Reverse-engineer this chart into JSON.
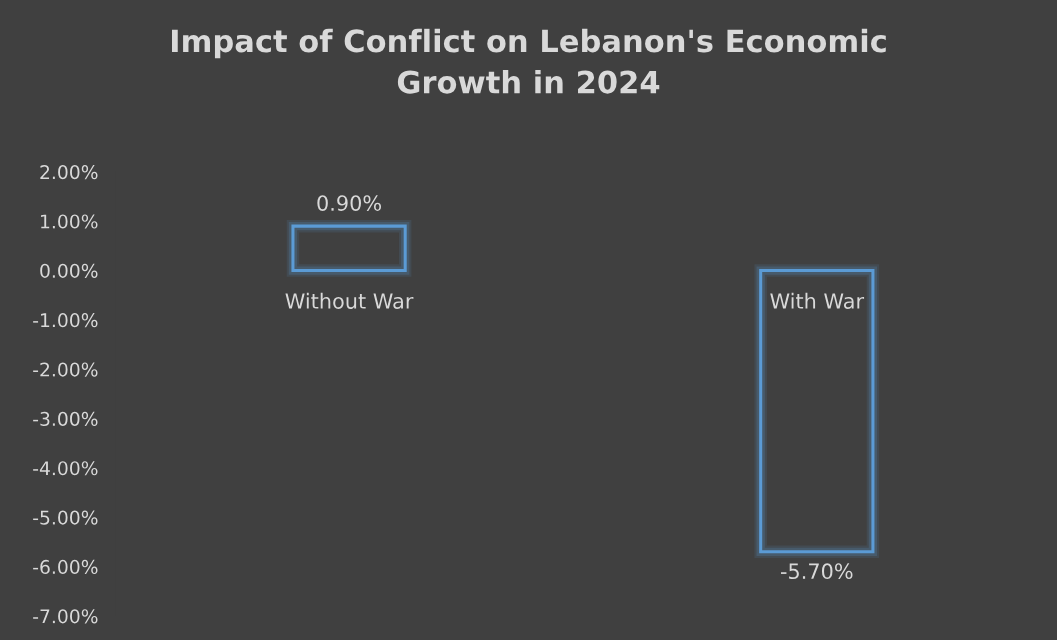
{
  "chart_data": {
    "type": "bar",
    "title": "Impact of Conflict on Lebanon's Economic\nGrowth in 2024",
    "categories": [
      "Without War",
      "With War"
    ],
    "values": [
      0.9,
      -5.7
    ],
    "color": "#5b9bd5",
    "value_labels": [
      "0.90%",
      "-5.70%"
    ],
    "ylim": [
      -7,
      2
    ],
    "yticks": [
      {
        "value": 2,
        "label": "2.00%"
      },
      {
        "value": 1,
        "label": "1.00%"
      },
      {
        "value": 0,
        "label": "0.00%"
      },
      {
        "value": -1,
        "label": "-1.00%"
      },
      {
        "value": -2,
        "label": "-2.00%"
      },
      {
        "value": -3,
        "label": "-3.00%"
      },
      {
        "value": -4,
        "label": "-4.00%"
      },
      {
        "value": -5,
        "label": "-5.00%"
      },
      {
        "value": -6,
        "label": "-6.00%"
      },
      {
        "value": -7,
        "label": "-7.00%"
      }
    ],
    "grid": false,
    "legend": false
  }
}
